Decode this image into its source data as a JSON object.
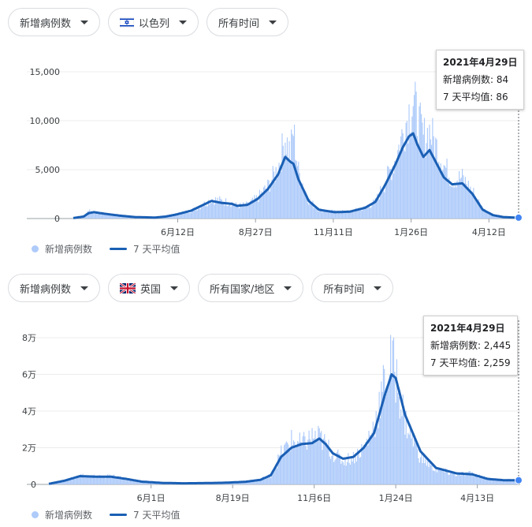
{
  "panels": [
    {
      "filters": [
        {
          "label": "新增病例数"
        },
        {
          "label": "以色列",
          "flag": "israel-flag"
        },
        {
          "label": "所有时间"
        }
      ],
      "tooltip": {
        "date": "2021年4月29日",
        "new_label": "新增病例数:",
        "new_value": "84",
        "avg_label": "7 天平均值:",
        "avg_value": "86"
      },
      "legend": {
        "bars": "新增病例数",
        "line": "7 天平均值"
      },
      "colors": {
        "bars": "#aecbfa",
        "line": "#1a5fb4"
      },
      "chart_data": {
        "type": "bar",
        "x_range": [
          0,
          435
        ],
        "ylim": [
          0,
          15000
        ],
        "yticks": [
          {
            "value": 0,
            "label": "0"
          },
          {
            "value": 5000,
            "label": "5,000"
          },
          {
            "value": 10000,
            "label": "10,000"
          },
          {
            "value": 15000,
            "label": "15,000"
          }
        ],
        "xticks": [
          {
            "x": 102,
            "label": "6月12日"
          },
          {
            "x": 178,
            "label": "8月27日"
          },
          {
            "x": 254,
            "label": "11月11日"
          },
          {
            "x": 330,
            "label": "1月26日"
          },
          {
            "x": 406,
            "label": "4月12日"
          }
        ],
        "series": [
          {
            "name": "新增病例数",
            "type": "bar",
            "values": [
              [
                0,
                20
              ],
              [
                10,
                150
              ],
              [
                15,
                900
              ],
              [
                20,
                650
              ],
              [
                30,
                450
              ],
              [
                45,
                200
              ],
              [
                60,
                100
              ],
              [
                80,
                100
              ],
              [
                90,
                200
              ],
              [
                100,
                400
              ],
              [
                115,
                800
              ],
              [
                125,
                1300
              ],
              [
                135,
                2000
              ],
              [
                145,
                1800
              ],
              [
                155,
                1600
              ],
              [
                160,
                1300
              ],
              [
                170,
                1400
              ],
              [
                180,
                2100
              ],
              [
                190,
                3300
              ],
              [
                200,
                5200
              ],
              [
                207,
                8300
              ],
              [
                212,
                6700
              ],
              [
                215,
                9000
              ],
              [
                220,
                4800
              ],
              [
                230,
                1900
              ],
              [
                240,
                900
              ],
              [
                255,
                700
              ],
              [
                270,
                700
              ],
              [
                285,
                1100
              ],
              [
                295,
                1700
              ],
              [
                305,
                3800
              ],
              [
                315,
                6200
              ],
              [
                322,
                8800
              ],
              [
                328,
                11000
              ],
              [
                332,
                12000
              ],
              [
                336,
                10400
              ],
              [
                342,
                8300
              ],
              [
                348,
                9000
              ],
              [
                355,
                7300
              ],
              [
                362,
                5500
              ],
              [
                370,
                4000
              ],
              [
                380,
                4200
              ],
              [
                390,
                2800
              ],
              [
                400,
                1000
              ],
              [
                410,
                400
              ],
              [
                420,
                150
              ],
              [
                435,
                84
              ]
            ]
          },
          {
            "name": "7 天平均值",
            "type": "line",
            "values": [
              [
                0,
                50
              ],
              [
                10,
                200
              ],
              [
                15,
                550
              ],
              [
                20,
                650
              ],
              [
                30,
                500
              ],
              [
                45,
                300
              ],
              [
                60,
                150
              ],
              [
                80,
                100
              ],
              [
                90,
                200
              ],
              [
                100,
                400
              ],
              [
                115,
                800
              ],
              [
                125,
                1300
              ],
              [
                135,
                1800
              ],
              [
                145,
                1600
              ],
              [
                155,
                1500
              ],
              [
                160,
                1300
              ],
              [
                170,
                1400
              ],
              [
                180,
                2000
              ],
              [
                190,
                3000
              ],
              [
                200,
                4500
              ],
              [
                207,
                6300
              ],
              [
                212,
                5800
              ],
              [
                215,
                5600
              ],
              [
                220,
                4000
              ],
              [
                230,
                1800
              ],
              [
                240,
                900
              ],
              [
                255,
                650
              ],
              [
                270,
                700
              ],
              [
                285,
                1100
              ],
              [
                295,
                1700
              ],
              [
                305,
                3500
              ],
              [
                315,
                5600
              ],
              [
                322,
                7300
              ],
              [
                328,
                8400
              ],
              [
                332,
                8700
              ],
              [
                336,
                7600
              ],
              [
                342,
                6300
              ],
              [
                348,
                7000
              ],
              [
                355,
                5600
              ],
              [
                362,
                4200
              ],
              [
                370,
                3500
              ],
              [
                380,
                3600
              ],
              [
                390,
                2500
              ],
              [
                400,
                900
              ],
              [
                410,
                350
              ],
              [
                420,
                150
              ],
              [
                435,
                86
              ]
            ]
          }
        ]
      }
    },
    {
      "filters": [
        {
          "label": "新增病例数"
        },
        {
          "label": "英国",
          "flag": "uk-flag"
        },
        {
          "label": "所有国家/地区"
        },
        {
          "label": "所有时间"
        }
      ],
      "tooltip": {
        "date": "2021年4月29日",
        "new_label": "新增病例数:",
        "new_value": "2,445",
        "avg_label": "7 天平均值:",
        "avg_value": "2,259"
      },
      "legend": {
        "bars": "新增病例数",
        "line": "7 天平均值"
      },
      "colors": {
        "bars": "#aecbfa",
        "line": "#1a5fb4"
      },
      "chart_data": {
        "type": "bar",
        "x_range": [
          0,
          455
        ],
        "ylim": [
          0,
          80000
        ],
        "yticks": [
          {
            "value": 0,
            "label": "0"
          },
          {
            "value": 20000,
            "label": "2万"
          },
          {
            "value": 40000,
            "label": "4万"
          },
          {
            "value": 60000,
            "label": "6万"
          },
          {
            "value": 80000,
            "label": "8万"
          }
        ],
        "xticks": [
          {
            "x": 99,
            "label": "6月1日"
          },
          {
            "x": 178,
            "label": "8月19日"
          },
          {
            "x": 257,
            "label": "11月6日"
          },
          {
            "x": 336,
            "label": "1月24日"
          },
          {
            "x": 415,
            "label": "4月13日"
          }
        ],
        "series": [
          {
            "name": "新增病例数",
            "type": "bar",
            "values": [
              [
                0,
                300
              ],
              [
                15,
                2000
              ],
              [
                30,
                5000
              ],
              [
                45,
                4200
              ],
              [
                60,
                4500
              ],
              [
                75,
                3000
              ],
              [
                90,
                1500
              ],
              [
                110,
                800
              ],
              [
                130,
                600
              ],
              [
                150,
                800
              ],
              [
                170,
                1000
              ],
              [
                190,
                1500
              ],
              [
                205,
                3000
              ],
              [
                215,
                5000
              ],
              [
                225,
                17000
              ],
              [
                235,
                24000
              ],
              [
                245,
                22000
              ],
              [
                255,
                26000
              ],
              [
                262,
                26000
              ],
              [
                268,
                22000
              ],
              [
                275,
                17000
              ],
              [
                285,
                13000
              ],
              [
                295,
                15000
              ],
              [
                305,
                20000
              ],
              [
                315,
                32000
              ],
              [
                325,
                55000
              ],
              [
                332,
                68000
              ],
              [
                336,
                60000
              ],
              [
                345,
                35000
              ],
              [
                360,
                15000
              ],
              [
                375,
                8000
              ],
              [
                395,
                5500
              ],
              [
                410,
                6000
              ],
              [
                425,
                3000
              ],
              [
                440,
                2400
              ],
              [
                455,
                2445
              ]
            ]
          },
          {
            "name": "7 天平均值",
            "type": "line",
            "values": [
              [
                0,
                300
              ],
              [
                15,
                2000
              ],
              [
                30,
                4500
              ],
              [
                45,
                4200
              ],
              [
                60,
                4200
              ],
              [
                75,
                3000
              ],
              [
                90,
                1500
              ],
              [
                110,
                800
              ],
              [
                130,
                600
              ],
              [
                150,
                700
              ],
              [
                170,
                900
              ],
              [
                190,
                1400
              ],
              [
                205,
                2500
              ],
              [
                215,
                5000
              ],
              [
                225,
                15000
              ],
              [
                235,
                20000
              ],
              [
                245,
                22000
              ],
              [
                255,
                22500
              ],
              [
                262,
                25000
              ],
              [
                268,
                22000
              ],
              [
                275,
                17000
              ],
              [
                285,
                14000
              ],
              [
                295,
                15000
              ],
              [
                305,
                20000
              ],
              [
                315,
                28000
              ],
              [
                325,
                48000
              ],
              [
                332,
                60000
              ],
              [
                336,
                58000
              ],
              [
                345,
                38000
              ],
              [
                360,
                18000
              ],
              [
                375,
                9000
              ],
              [
                395,
                6000
              ],
              [
                410,
                5500
              ],
              [
                425,
                3000
              ],
              [
                440,
                2300
              ],
              [
                455,
                2259
              ]
            ]
          }
        ]
      }
    }
  ]
}
